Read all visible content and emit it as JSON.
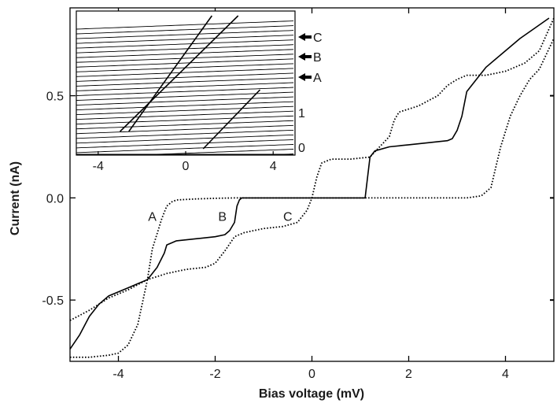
{
  "chart_data": [
    {
      "type": "line",
      "title": "",
      "xlabel": "Bias voltage    (mV)",
      "ylabel": "Current  (nA)",
      "xlim": [
        -5,
        5
      ],
      "ylim": [
        -0.8,
        0.93
      ],
      "xticks": [
        -4,
        -2,
        0,
        2,
        4
      ],
      "yticks": [
        -0.5,
        0.0,
        0.5
      ],
      "xtick_labels": [
        "-4",
        "-2",
        "0",
        "2",
        "4"
      ],
      "ytick_labels": [
        "-0.5",
        "0.0",
        "0.5"
      ],
      "grid": false,
      "series": [
        {
          "name": "A",
          "style": "dotted",
          "x": [
            -5.0,
            -4.6,
            -4.2,
            -4.0,
            -3.8,
            -3.6,
            -3.4,
            -3.3,
            -3.1,
            -3.0,
            -2.9,
            -2.8,
            -2.4,
            -2.0,
            -1.6,
            -1.2,
            -0.8,
            -0.2,
            0.2,
            0.6,
            1.0,
            1.4,
            1.6,
            1.8,
            2.0,
            2.4,
            2.8,
            3.2,
            3.5,
            3.7,
            3.9,
            4.1,
            4.3,
            4.5,
            4.7,
            5.0
          ],
          "y": [
            -0.78,
            -0.78,
            -0.77,
            -0.76,
            -0.72,
            -0.62,
            -0.4,
            -0.25,
            -0.1,
            -0.04,
            -0.02,
            -0.01,
            -0.005,
            -0.002,
            0.0,
            0.0,
            0.0,
            0.0,
            0.0,
            0.0,
            0.0,
            0.0,
            0.0,
            0.0,
            0.0,
            0.0,
            0.0,
            0.0,
            0.01,
            0.05,
            0.25,
            0.4,
            0.5,
            0.58,
            0.63,
            0.78
          ]
        },
        {
          "name": "B",
          "style": "solid",
          "x": [
            -5.0,
            -4.8,
            -4.6,
            -4.4,
            -4.2,
            -4.0,
            -3.8,
            -3.6,
            -3.4,
            -3.2,
            -3.05,
            -3.0,
            -2.9,
            -2.8,
            -2.4,
            -2.0,
            -1.8,
            -1.7,
            -1.6,
            -1.55,
            -1.5,
            -1.45,
            -1.2,
            -0.8,
            -0.4,
            0.0,
            0.4,
            0.8,
            1.1,
            1.15,
            1.2,
            1.3,
            1.6,
            2.0,
            2.4,
            2.8,
            2.9,
            3.0,
            3.1,
            3.2,
            3.4,
            3.6,
            3.8,
            4.0,
            4.3,
            4.6,
            4.9
          ],
          "y": [
            -0.74,
            -0.67,
            -0.58,
            -0.52,
            -0.48,
            -0.46,
            -0.44,
            -0.42,
            -0.4,
            -0.34,
            -0.27,
            -0.23,
            -0.22,
            -0.21,
            -0.2,
            -0.19,
            -0.18,
            -0.16,
            -0.12,
            -0.04,
            -0.01,
            0.0,
            0.0,
            0.0,
            0.0,
            0.0,
            0.0,
            0.0,
            0.0,
            0.1,
            0.2,
            0.23,
            0.25,
            0.26,
            0.27,
            0.28,
            0.29,
            0.33,
            0.4,
            0.52,
            0.58,
            0.64,
            0.68,
            0.72,
            0.78,
            0.83,
            0.88
          ]
        },
        {
          "name": "C",
          "style": "dotted",
          "x": [
            -5.0,
            -4.6,
            -4.2,
            -3.8,
            -3.4,
            -3.0,
            -2.6,
            -2.2,
            -2.0,
            -1.8,
            -1.6,
            -1.4,
            -1.0,
            -0.6,
            -0.3,
            -0.1,
            0.0,
            0.1,
            0.2,
            0.4,
            0.8,
            1.2,
            1.6,
            1.7,
            1.8,
            2.2,
            2.6,
            2.8,
            3.0,
            3.2,
            3.6,
            4.0,
            4.4,
            4.7,
            5.0
          ],
          "y": [
            -0.6,
            -0.55,
            -0.49,
            -0.45,
            -0.4,
            -0.37,
            -0.35,
            -0.34,
            -0.32,
            -0.26,
            -0.19,
            -0.17,
            -0.15,
            -0.14,
            -0.12,
            -0.06,
            0.0,
            0.1,
            0.17,
            0.19,
            0.19,
            0.2,
            0.3,
            0.38,
            0.42,
            0.45,
            0.5,
            0.55,
            0.58,
            0.6,
            0.6,
            0.62,
            0.66,
            0.72,
            0.88
          ]
        }
      ],
      "annotations": [
        {
          "text": "A",
          "x": -3.3,
          "y": -0.09
        },
        {
          "text": "B",
          "x": -1.85,
          "y": -0.09
        },
        {
          "text": "C",
          "x": -0.5,
          "y": -0.09
        }
      ]
    },
    {
      "type": "line",
      "title": "inset",
      "xlim": [
        -5,
        5
      ],
      "xticks": [
        -4,
        0,
        4
      ],
      "xtick_labels": [
        "-4",
        "0",
        "4"
      ],
      "right_ytick_labels": [
        "0",
        "1"
      ],
      "legend": [
        {
          "text": "C",
          "marker": "arrow-left"
        },
        {
          "text": "B",
          "marker": "arrow-left"
        },
        {
          "text": "A",
          "marker": "arrow-left"
        }
      ],
      "series_count": 30,
      "step_lines": [
        {
          "x": [
            -2.6,
            1.2
          ]
        },
        {
          "x": [
            -3.0,
            2.4
          ]
        }
      ],
      "grid": false
    }
  ]
}
